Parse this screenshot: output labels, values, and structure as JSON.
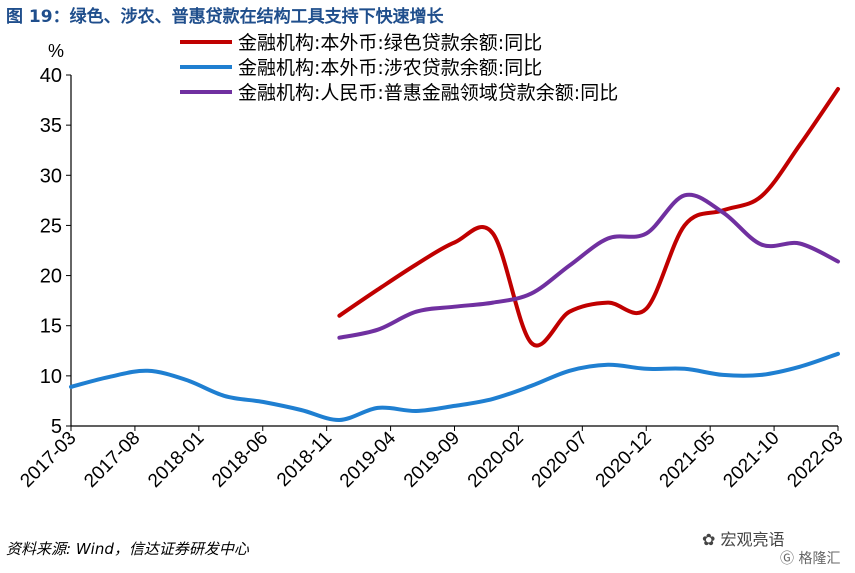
{
  "title": "图 19：绿色、涉农、普惠贷款在结构工具支持下快速增长",
  "source": "资料来源: Wind，信达证券研发中心",
  "watermark": "宏观亮语",
  "watermark2": "格隆汇",
  "chart_data": {
    "type": "line",
    "title": "图 19：绿色、涉农、普惠贷款在结构工具支持下快速增长",
    "ylabel": "%",
    "ylim": [
      5,
      40
    ],
    "yticks": [
      "5",
      "10",
      "15",
      "20",
      "25",
      "30",
      "35",
      "40"
    ],
    "xticks": [
      "2017-03",
      "2017-08",
      "2018-01",
      "2018-06",
      "2018-11",
      "2019-04",
      "2019-09",
      "2020-02",
      "2020-07",
      "2020-12",
      "2021-05",
      "2021-10",
      "2022-03"
    ],
    "grid": false,
    "legend": "top",
    "series": [
      {
        "name": "金融机构:本外币:绿色贷款余额:同比",
        "color": "#c00000",
        "points": [
          [
            "2018-12",
            16.0
          ],
          [
            "2019-03",
            18.6
          ],
          [
            "2019-06",
            21.1
          ],
          [
            "2019-09",
            23.3
          ],
          [
            "2019-12",
            24.2
          ],
          [
            "2020-03",
            13.3
          ],
          [
            "2020-06",
            16.4
          ],
          [
            "2020-09",
            17.3
          ],
          [
            "2020-12",
            16.7
          ],
          [
            "2021-03",
            25.0
          ],
          [
            "2021-06",
            26.5
          ],
          [
            "2021-09",
            27.9
          ],
          [
            "2021-12",
            33.0
          ],
          [
            "2022-03",
            38.6
          ]
        ]
      },
      {
        "name": "金融机构:本外币:涉农贷款余额:同比",
        "color": "#1f7fd1",
        "points": [
          [
            "2017-03",
            8.9
          ],
          [
            "2017-06",
            9.9
          ],
          [
            "2017-09",
            10.5
          ],
          [
            "2017-12",
            9.6
          ],
          [
            "2018-03",
            8.0
          ],
          [
            "2018-06",
            7.4
          ],
          [
            "2018-09",
            6.6
          ],
          [
            "2018-12",
            5.6
          ],
          [
            "2019-03",
            6.8
          ],
          [
            "2019-06",
            6.5
          ],
          [
            "2019-09",
            7.0
          ],
          [
            "2019-12",
            7.7
          ],
          [
            "2020-03",
            9.0
          ],
          [
            "2020-06",
            10.5
          ],
          [
            "2020-09",
            11.1
          ],
          [
            "2020-12",
            10.7
          ],
          [
            "2021-03",
            10.7
          ],
          [
            "2021-06",
            10.1
          ],
          [
            "2021-09",
            10.1
          ],
          [
            "2021-12",
            10.9
          ],
          [
            "2022-03",
            12.2
          ]
        ]
      },
      {
        "name": "金融机构:人民币:普惠金融领域贷款余额:同比",
        "color": "#7030a0",
        "points": [
          [
            "2018-12",
            13.8
          ],
          [
            "2019-03",
            14.6
          ],
          [
            "2019-06",
            16.4
          ],
          [
            "2019-09",
            16.9
          ],
          [
            "2019-12",
            17.3
          ],
          [
            "2020-03",
            18.2
          ],
          [
            "2020-06",
            21.0
          ],
          [
            "2020-09",
            23.7
          ],
          [
            "2020-12",
            24.2
          ],
          [
            "2021-03",
            28.0
          ],
          [
            "2021-06",
            26.3
          ],
          [
            "2021-09",
            23.1
          ],
          [
            "2021-12",
            23.2
          ],
          [
            "2022-03",
            21.4
          ]
        ]
      }
    ]
  }
}
